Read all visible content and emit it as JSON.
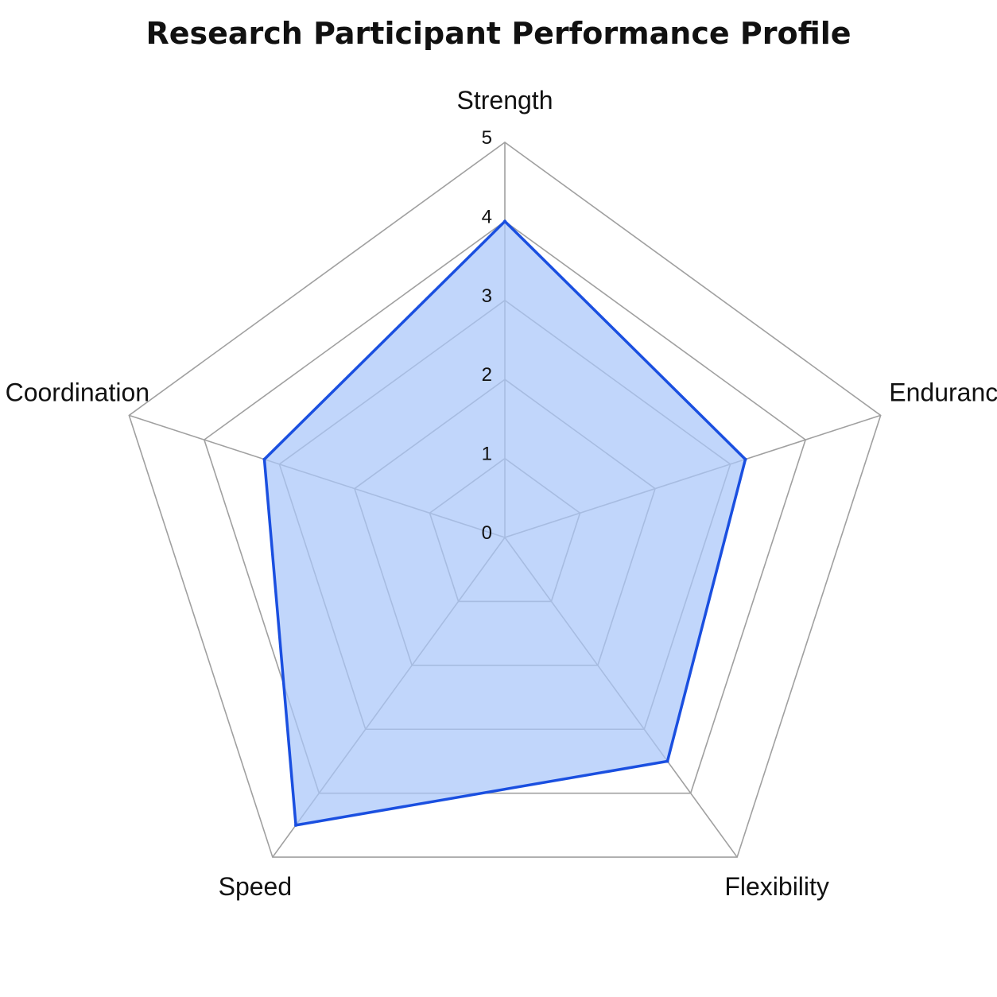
{
  "chart_data": {
    "type": "radar",
    "title": "Research Participant Performance Profile",
    "axes": [
      "Strength",
      "Endurance",
      "Flexibility",
      "Speed",
      "Coordination"
    ],
    "values": [
      4,
      3.2,
      3.5,
      4.5,
      3.2
    ],
    "r_range": [
      0,
      5
    ],
    "r_ticks": [
      "0",
      "1",
      "2",
      "3",
      "4",
      "5"
    ],
    "grid": true,
    "colors": {
      "line": "#1a4fe0",
      "fill": "#a9c6fa",
      "grid": "#a0a0a0"
    }
  }
}
